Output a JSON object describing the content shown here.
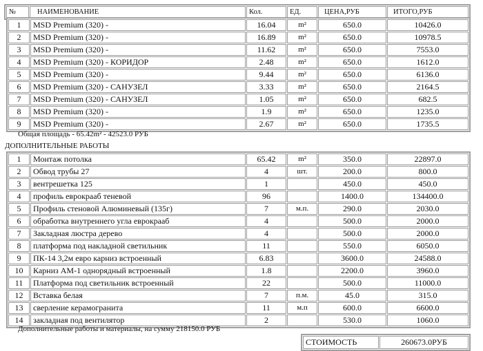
{
  "header": {
    "num": "№",
    "name": "НАИМЕНОВАНИЕ",
    "qty": "Кол.",
    "unit": "ЕД.",
    "price": "ЦЕНА,РУБ",
    "total": "ИТОГО,РУБ"
  },
  "ceilings": [
    {
      "n": "1",
      "name": "MSD Premium (320) -",
      "qty": "16.04",
      "unit": "m²",
      "price": "650.0",
      "total": "10426.0"
    },
    {
      "n": "2",
      "name": "MSD Premium (320) -",
      "qty": "16.89",
      "unit": "m²",
      "price": "650.0",
      "total": "10978.5"
    },
    {
      "n": "3",
      "name": "MSD Premium (320) -",
      "qty": "11.62",
      "unit": "m²",
      "price": "650.0",
      "total": "7553.0"
    },
    {
      "n": "4",
      "name": "MSD Premium (320) - КОРИДОР",
      "qty": "2.48",
      "unit": "m²",
      "price": "650.0",
      "total": "1612.0"
    },
    {
      "n": "5",
      "name": "MSD Premium (320) -",
      "qty": "9.44",
      "unit": "m²",
      "price": "650.0",
      "total": "6136.0"
    },
    {
      "n": "6",
      "name": "MSD Premium (320) - САНУЗЕЛ",
      "qty": "3.33",
      "unit": "m²",
      "price": "650.0",
      "total": "2164.5"
    },
    {
      "n": "7",
      "name": "MSD Premium (320) - САНУЗЕЛ",
      "qty": "1.05",
      "unit": "m²",
      "price": "650.0",
      "total": "682.5"
    },
    {
      "n": "8",
      "name": "MSD Premium (320) -",
      "qty": "1.9",
      "unit": "m²",
      "price": "650.0",
      "total": "1235.0"
    },
    {
      "n": "9",
      "name": "MSD Premium (320) -",
      "qty": "2.67",
      "unit": "m²",
      "price": "650.0",
      "total": "1735.5"
    }
  ],
  "area_summary": "Общая площадь  - 65.42m² - 42523.0 РУБ",
  "extra_title": "ДОПОЛНИТЕЛЬНЫЕ РАБОТЫ",
  "extras": [
    {
      "n": "1",
      "name": "Монтаж потолка",
      "qty": "65.42",
      "unit": "m²",
      "price": "350.0",
      "total": "22897.0"
    },
    {
      "n": "2",
      "name": "Обвод трубы 27",
      "qty": "4",
      "unit": "шт.",
      "price": "200.0",
      "total": "800.0"
    },
    {
      "n": "3",
      "name": "вентрешетка 125",
      "qty": "1",
      "unit": "",
      "price": "450.0",
      "total": "450.0"
    },
    {
      "n": "4",
      "name": "профиль еврокрааб теневой",
      "qty": "96",
      "unit": "",
      "price": "1400.0",
      "total": "134400.0"
    },
    {
      "n": "5",
      "name": "Профиль стеновой Алюминевый (135г)",
      "qty": "7",
      "unit": "м.п.",
      "price": "290.0",
      "total": "2030.0"
    },
    {
      "n": "6",
      "name": "обработка внутреннего угла еврокрааб",
      "qty": "4",
      "unit": "",
      "price": "500.0",
      "total": "2000.0"
    },
    {
      "n": "7",
      "name": "Закладная люстра дерево",
      "qty": "4",
      "unit": "",
      "price": "500.0",
      "total": "2000.0"
    },
    {
      "n": "8",
      "name": "платформа под накладной светильник",
      "qty": "11",
      "unit": "",
      "price": "550.0",
      "total": "6050.0"
    },
    {
      "n": "9",
      "name": "ПК-14 3,2м евро карниз встроенный",
      "qty": "6.83",
      "unit": "",
      "price": "3600.0",
      "total": "24588.0"
    },
    {
      "n": "10",
      "name": "Карниз АМ-1 однорядный встроенный",
      "qty": "1.8",
      "unit": "",
      "price": "2200.0",
      "total": "3960.0"
    },
    {
      "n": "11",
      "name": "Платформа под светильник встроенный",
      "qty": "22",
      "unit": "",
      "price": "500.0",
      "total": "11000.0"
    },
    {
      "n": "12",
      "name": "Вставка белая",
      "qty": "7",
      "unit": "п.м.",
      "price": "45.0",
      "total": "315.0"
    },
    {
      "n": "13",
      "name": "сверление керамогранита",
      "qty": "11",
      "unit": "м.п",
      "price": "600.0",
      "total": "6600.0"
    },
    {
      "n": "14",
      "name": "закладная под вентилятор",
      "qty": "2",
      "unit": "",
      "price": "530.0",
      "total": "1060.0"
    }
  ],
  "extras_summary": "Дополнительные работы и материалы, на сумму  218150.0 РУБ",
  "cost": {
    "label": "СТОИМОСТЬ",
    "value": "260673.0РУБ"
  }
}
